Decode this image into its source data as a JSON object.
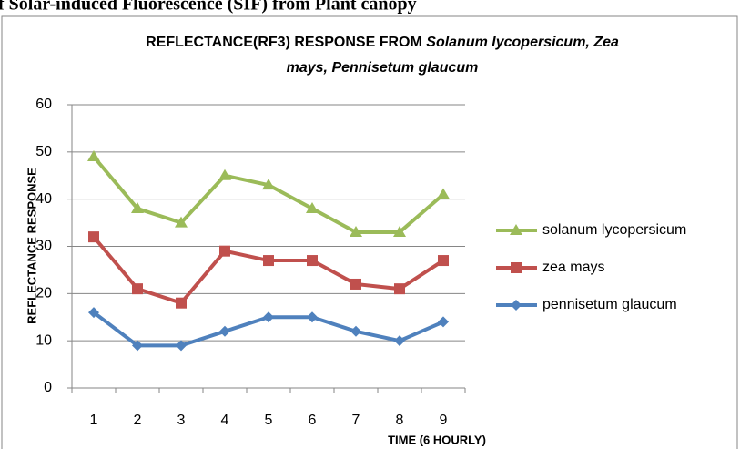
{
  "caption": "of Solar-induced Fluorescence (SIF) from Plant canopy",
  "chart_data": {
    "type": "line",
    "title": [
      "REFLECTANCE(RF3) RESPONSE FROM",
      "Solanum lycopersicum, Zea",
      "mays, Pennisetum glaucum"
    ],
    "x_label": "TIME (6 HOURLY)",
    "y_label": "REFLECTANCE RESPONSE",
    "categories": [
      "1",
      "2",
      "3",
      "4",
      "5",
      "6",
      "7",
      "8",
      "9"
    ],
    "series": [
      {
        "name": "solanum lycopersicum",
        "color": "#9bbb59",
        "marker": "triangle",
        "values": [
          49,
          38,
          35,
          45,
          43,
          38,
          33,
          33,
          41
        ]
      },
      {
        "name": "zea mays",
        "color": "#c0504d",
        "marker": "square",
        "values": [
          32,
          21,
          18,
          29,
          27,
          27,
          22,
          21,
          27
        ]
      },
      {
        "name": "pennisetum glaucum",
        "color": "#4f81bd",
        "marker": "diamond",
        "values": [
          16,
          9,
          9,
          12,
          15,
          15,
          12,
          10,
          14
        ]
      }
    ],
    "ylim": [
      0,
      60
    ],
    "yticks": [
      0,
      10,
      20,
      30,
      40,
      50,
      60
    ],
    "grid": true,
    "legend": "right"
  }
}
